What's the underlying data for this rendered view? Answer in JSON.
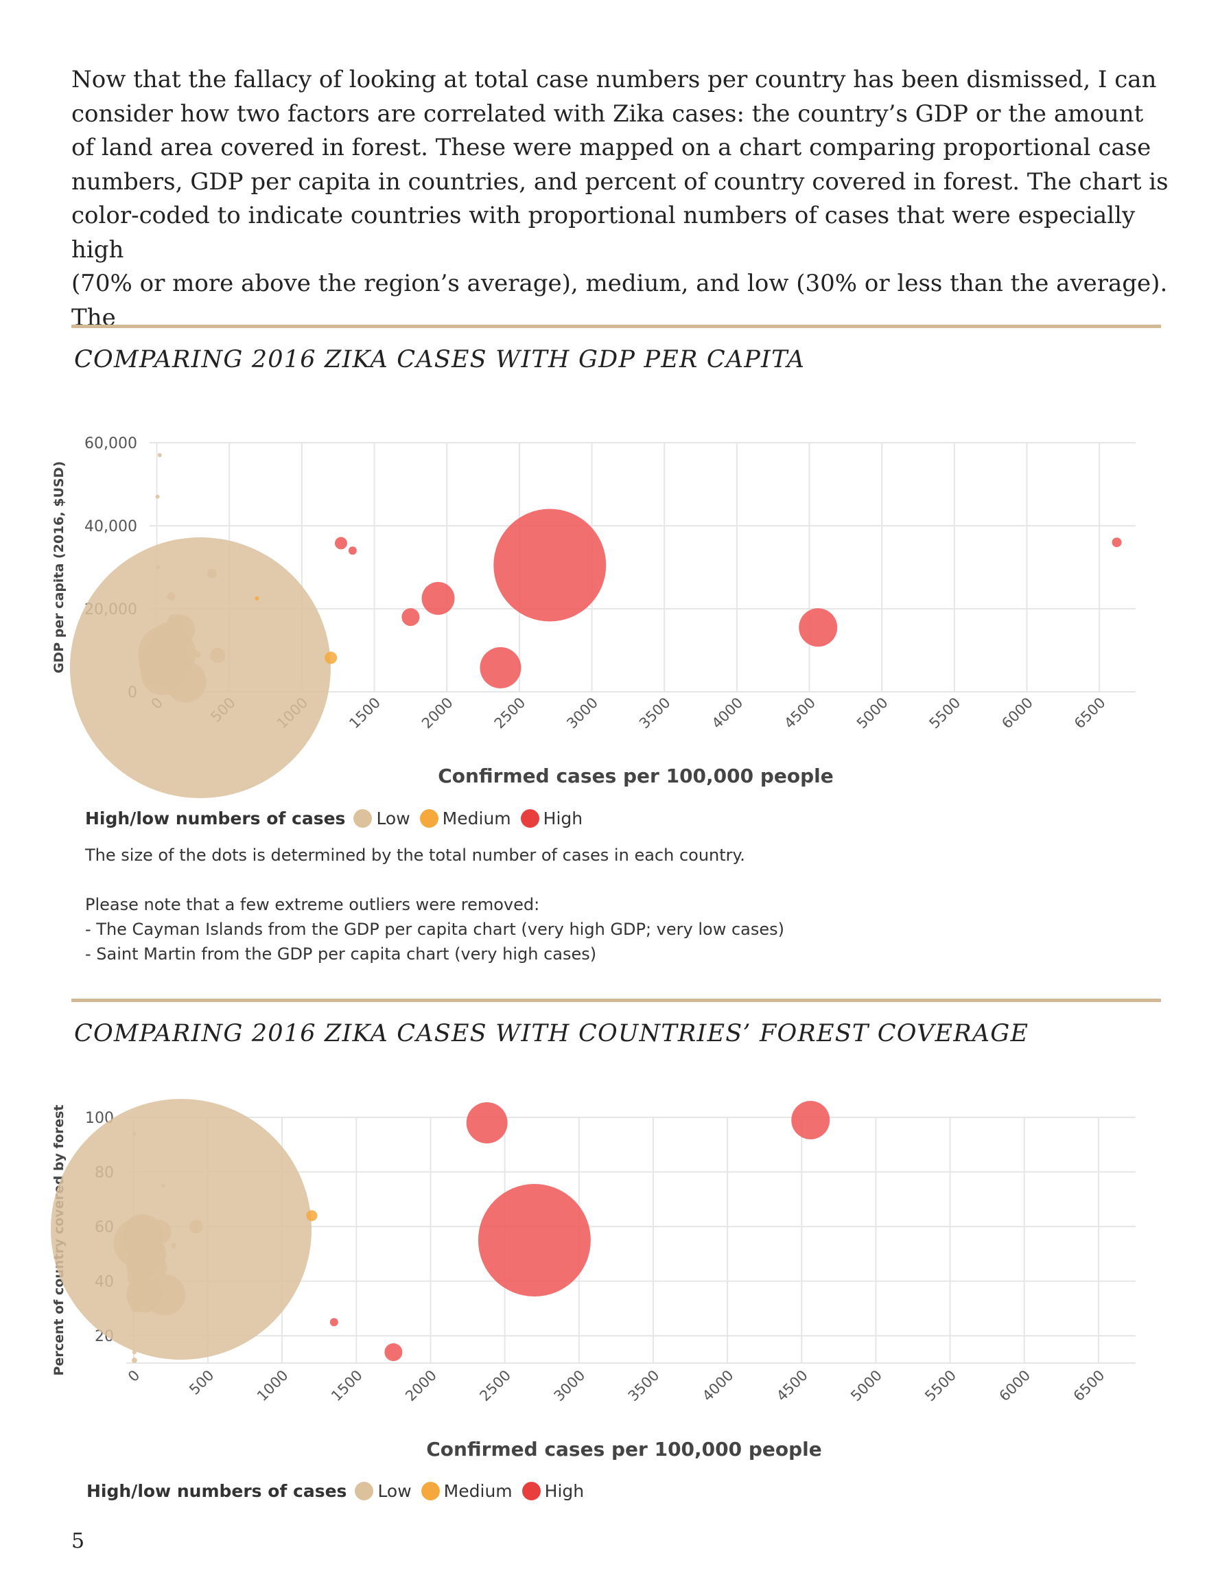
{
  "intro_text": "Now that the fallacy of looking at total case numbers per country has been dismissed, I can\nconsider how two factors are correlated with Zika cases: the country’s GDP or the amount\nof land area covered in forest. These were mapped on a chart comparing proportional case\nnumbers, GDP per capita in countries, and percent of country covered in forest. The chart is\ncolor-coded to indicate countries with proportional numbers of cases that were especially high\n(70% or more above the region’s average), medium, and low (30% or less than the average). The",
  "colors": {
    "low": "#dcc19d",
    "medium": "#f5a93c",
    "high": "#ef5b5b",
    "rule": "#d3b895",
    "grid": "#e6e6e6"
  },
  "legend": {
    "title": "High/low numbers of cases",
    "items": [
      "Low",
      "Medium",
      "High"
    ]
  },
  "chart1_title": "COMPARING 2016 ZIKA CASES WITH GDP PER CAPITA",
  "chart2_title": "COMPARING 2016 ZIKA CASES WITH COUNTRIES’ FOREST COVERAGE",
  "notes": {
    "size_note": "The size of the dots is determined by the total number of cases in each country.",
    "outlier_intro": "Please note that a few extreme outliers were removed:",
    "outlier_1": "- The Cayman Islands from the GDP per capita chart (very high GDP; very low cases)",
    "outlier_2": "- Saint Martin from the GDP per capita chart (very high cases)"
  },
  "page_number": "5",
  "chart_data": [
    {
      "type": "scatter",
      "title": "COMPARING 2016 ZIKA CASES WITH GDP PER CAPITA",
      "xlabel": "Confirmed cases per 100,000 people",
      "ylabel": "GDP per capita (2016, $USD)",
      "xlim": [
        -50,
        6750
      ],
      "ylim": [
        0,
        60000
      ],
      "x_ticks": [
        "0",
        "500",
        "1000",
        "1500",
        "2000",
        "2500",
        "3000",
        "3500",
        "4000",
        "4500",
        "5000",
        "5500",
        "6000",
        "6500"
      ],
      "y_ticks": [
        "0",
        "20,000",
        "40,000",
        "60,000"
      ],
      "grid": true,
      "size_encoding": "total number of cases in each country",
      "series": [
        {
          "name": "Low",
          "points": [
            {
              "x": 300,
              "y": 5800,
              "size": 190
            },
            {
              "x": 70,
              "y": 9200,
              "size": 42
            },
            {
              "x": 50,
              "y": 7000,
              "size": 36
            },
            {
              "x": 40,
              "y": 4500,
              "size": 32
            },
            {
              "x": 90,
              "y": 12500,
              "size": 26
            },
            {
              "x": 160,
              "y": 15000,
              "size": 22
            },
            {
              "x": 200,
              "y": 2400,
              "size": 30
            },
            {
              "x": 120,
              "y": 17000,
              "size": 10
            },
            {
              "x": 420,
              "y": 8800,
              "size": 11
            },
            {
              "x": 380,
              "y": 28500,
              "size": 7
            },
            {
              "x": 100,
              "y": 23000,
              "size": 6
            },
            {
              "x": 10,
              "y": 30000,
              "size": 3
            },
            {
              "x": 5,
              "y": 47000,
              "size": 3
            },
            {
              "x": 20,
              "y": 57000,
              "size": 3
            },
            {
              "x": 280,
              "y": 9000,
              "size": 5
            }
          ]
        },
        {
          "name": "Medium",
          "points": [
            {
              "x": 1200,
              "y": 8200,
              "size": 9
            },
            {
              "x": 690,
              "y": 22500,
              "size": 3
            }
          ]
        },
        {
          "name": "High",
          "points": [
            {
              "x": 2710,
              "y": 30500,
              "size": 82
            },
            {
              "x": 4560,
              "y": 15500,
              "size": 28
            },
            {
              "x": 2370,
              "y": 5800,
              "size": 30
            },
            {
              "x": 1940,
              "y": 22500,
              "size": 24
            },
            {
              "x": 1750,
              "y": 18000,
              "size": 13
            },
            {
              "x": 1270,
              "y": 35800,
              "size": 9
            },
            {
              "x": 1350,
              "y": 34000,
              "size": 6
            },
            {
              "x": 6620,
              "y": 36000,
              "size": 7
            }
          ]
        }
      ]
    },
    {
      "type": "scatter",
      "title": "COMPARING 2016 ZIKA CASES WITH COUNTRIES’ FOREST COVERAGE",
      "xlabel": "Confirmed cases per 100,000 people",
      "ylabel": "Percent of country covered by forest",
      "xlim": [
        -50,
        6750
      ],
      "ylim": [
        10,
        100
      ],
      "x_ticks": [
        "0",
        "500",
        "1000",
        "1500",
        "2000",
        "2500",
        "3000",
        "3500",
        "4000",
        "4500",
        "5000",
        "5500",
        "6000",
        "6500"
      ],
      "y_ticks": [
        "20",
        "40",
        "60",
        "80",
        "100"
      ],
      "grid": true,
      "size_encoding": "total number of cases in each country",
      "series": [
        {
          "name": "Low",
          "points": [
            {
              "x": 320,
              "y": 59,
              "size": 190
            },
            {
              "x": 30,
              "y": 54,
              "size": 36
            },
            {
              "x": 60,
              "y": 57,
              "size": 30
            },
            {
              "x": 100,
              "y": 50,
              "size": 26
            },
            {
              "x": 50,
              "y": 46,
              "size": 22
            },
            {
              "x": 40,
              "y": 42,
              "size": 18
            },
            {
              "x": 70,
              "y": 35,
              "size": 26
            },
            {
              "x": 210,
              "y": 35,
              "size": 30
            },
            {
              "x": 170,
              "y": 58,
              "size": 18
            },
            {
              "x": 20,
              "y": 34,
              "size": 14
            },
            {
              "x": 420,
              "y": 60,
              "size": 10
            },
            {
              "x": 10,
              "y": 30,
              "size": 6
            },
            {
              "x": 5,
              "y": 94,
              "size": 3
            },
            {
              "x": 200,
              "y": 75,
              "size": 3
            },
            {
              "x": 270,
              "y": 53,
              "size": 4
            },
            {
              "x": 5,
              "y": 14,
              "size": 3
            },
            {
              "x": 5,
              "y": 11,
              "size": 4
            },
            {
              "x": 150,
              "y": 45,
              "size": 16
            }
          ]
        },
        {
          "name": "Medium",
          "points": [
            {
              "x": 1200,
              "y": 64,
              "size": 8
            }
          ]
        },
        {
          "name": "High",
          "points": [
            {
              "x": 2700,
              "y": 55,
              "size": 82
            },
            {
              "x": 2380,
              "y": 98,
              "size": 30
            },
            {
              "x": 4560,
              "y": 99,
              "size": 28
            },
            {
              "x": 1750,
              "y": 14,
              "size": 13
            },
            {
              "x": 1350,
              "y": 25,
              "size": 6
            }
          ]
        }
      ]
    }
  ]
}
